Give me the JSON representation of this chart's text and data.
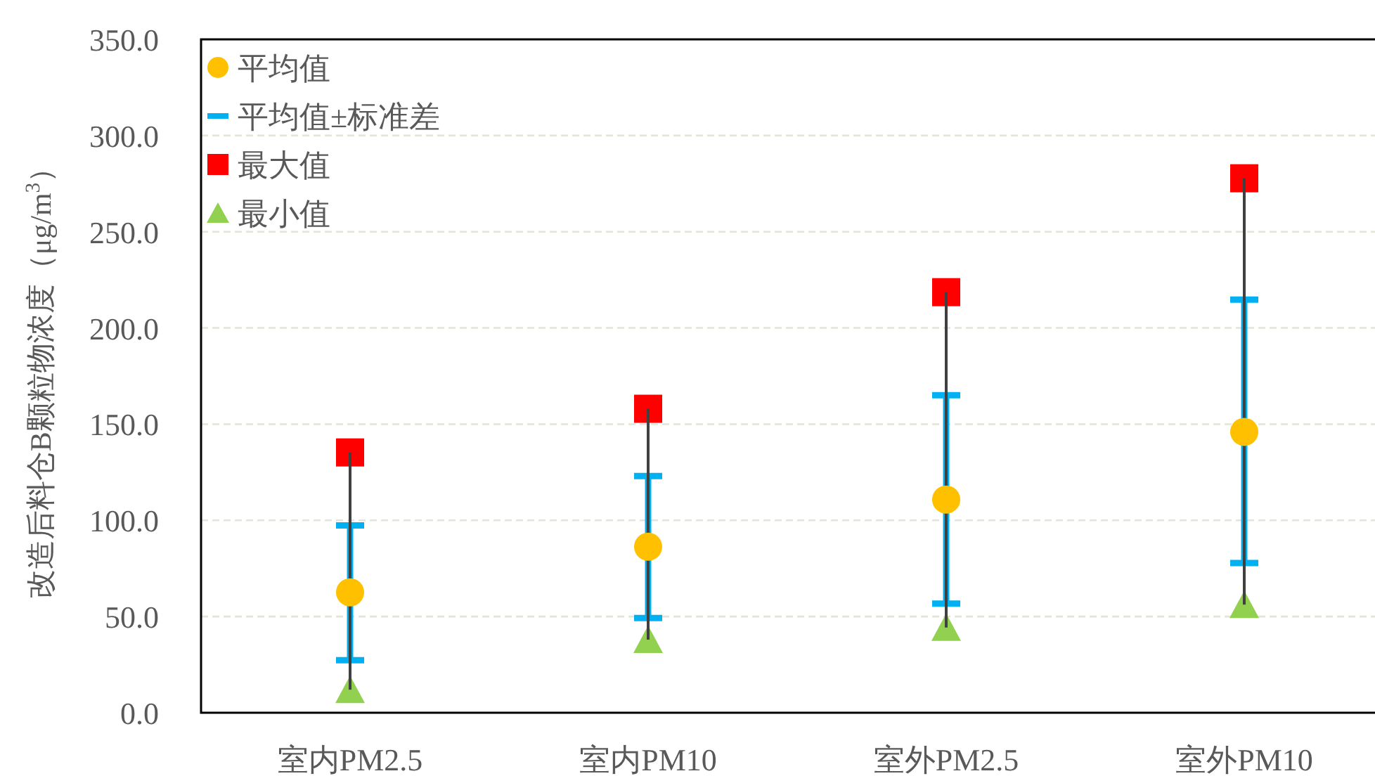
{
  "chart_data": {
    "type": "scatter",
    "ylabel": "改造后料仓B颗粒物浓度（μg/m$^{3}$）",
    "categories": [
      "室内PM2.5",
      "室内PM10",
      "室外PM2.5",
      "室外PM10"
    ],
    "ylim": [
      0,
      350
    ],
    "yticks": [
      {
        "value": 0,
        "label": "0.0"
      },
      {
        "value": 50,
        "label": "50.0"
      },
      {
        "value": 100,
        "label": "100.0"
      },
      {
        "value": 150,
        "label": "150.0"
      },
      {
        "value": 200,
        "label": "200.0"
      },
      {
        "value": 250,
        "label": "250.0"
      },
      {
        "value": 300,
        "label": "300.0"
      },
      {
        "value": 350,
        "label": "350.0"
      }
    ],
    "grid": "y",
    "legend": "top left",
    "series": [
      {
        "type": "bar",
        "color": "#404040",
        "base": [
          12,
          38,
          44.3,
          56.2
        ],
        "values": [
          123.3,
          120,
          174.3,
          221.6
        ]
      },
      {
        "name": "平均值",
        "color": "#ffc000",
        "marker": "circle",
        "values": [
          62.6,
          86.3,
          110.8,
          146
        ],
        "errors": [
          [
            27.3,
            97.4
          ],
          [
            49.2,
            123
          ],
          [
            56.7,
            165
          ],
          [
            77.8,
            214.7
          ]
        ]
      },
      {
        "name": "平均值±标准差",
        "color": "#00b0f0",
        "values": [
          null,
          null,
          null,
          null
        ]
      },
      {
        "name": "最大值",
        "color": "#ff0000",
        "marker": "square",
        "values": [
          135.3,
          158,
          218.6,
          277.8
        ]
      },
      {
        "name": "最小值",
        "color": "#92d050",
        "marker": "triangle",
        "values": [
          12,
          38,
          44.3,
          56.2
        ]
      }
    ]
  }
}
